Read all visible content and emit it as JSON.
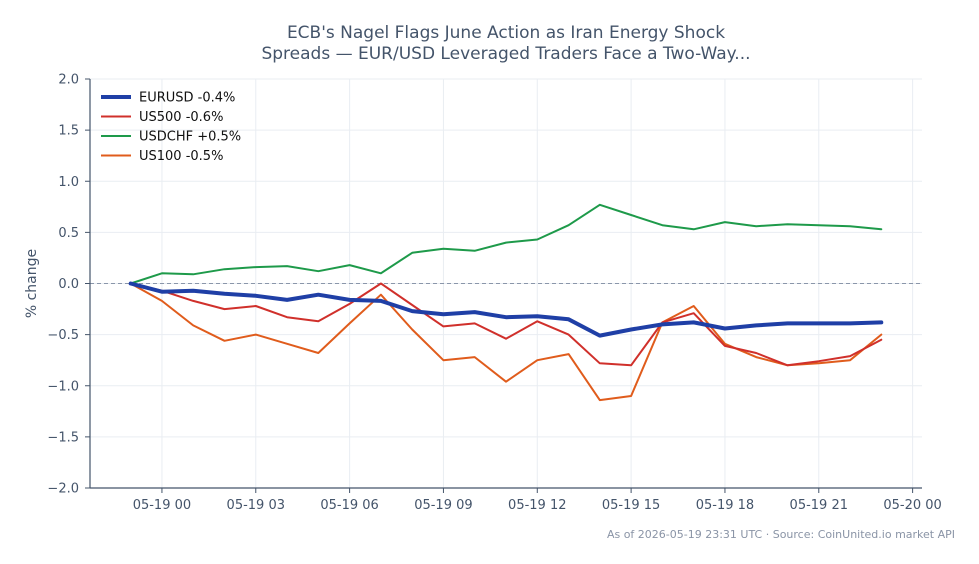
{
  "chart_data": {
    "type": "line",
    "title_lines": [
      "ECB's Nagel Flags June Action as Iran Energy Shock",
      "Spreads — EUR/USD Leveraged Traders Face a Two-Way..."
    ],
    "xlabel": "",
    "ylabel": "% change",
    "ylim": [
      -2.0,
      2.0
    ],
    "y_ticks": [
      2.0,
      1.5,
      1.0,
      0.5,
      0.0,
      -0.5,
      -1.0,
      -1.5,
      -2.0
    ],
    "y_tick_labels": [
      "2.0",
      "1.5",
      "1.0",
      "0.5",
      "0.0",
      "−0.5",
      "−1.0",
      "−1.5",
      "−2.0"
    ],
    "x_axis": "hours since 05-19 00:00",
    "xlim": [
      -2.3,
      24.3
    ],
    "x_ticks": [
      0,
      3,
      6,
      9,
      12,
      15,
      18,
      21,
      24
    ],
    "x_tick_labels": [
      "05-19 00",
      "05-19 03",
      "05-19 06",
      "05-19 09",
      "05-19 12",
      "05-19 15",
      "05-19 18",
      "05-19 21",
      "05-20 00"
    ],
    "x": [
      -1,
      0,
      1,
      2,
      3,
      4,
      5,
      6,
      7,
      8,
      9,
      10,
      11,
      12,
      13,
      14,
      15,
      16,
      17,
      18,
      19,
      20,
      21,
      22,
      23
    ],
    "grid": true,
    "zero_line": true,
    "legend_position": "top-left",
    "series": [
      {
        "name": "EURUSD -0.4%",
        "color": "#1f3fa6",
        "width": 4,
        "values": [
          0.0,
          -0.08,
          -0.07,
          -0.1,
          -0.12,
          -0.16,
          -0.11,
          -0.16,
          -0.17,
          -0.27,
          -0.3,
          -0.28,
          -0.33,
          -0.32,
          -0.35,
          -0.51,
          -0.45,
          -0.4,
          -0.38,
          -0.44,
          -0.41,
          -0.39,
          -0.39,
          -0.39,
          -0.38
        ]
      },
      {
        "name": "US500 -0.6%",
        "color": "#d0302b",
        "width": 2,
        "values": [
          0.0,
          -0.07,
          -0.17,
          -0.25,
          -0.22,
          -0.33,
          -0.37,
          -0.2,
          0.0,
          -0.21,
          -0.42,
          -0.39,
          -0.54,
          -0.37,
          -0.5,
          -0.78,
          -0.8,
          -0.38,
          -0.29,
          -0.61,
          -0.68,
          -0.8,
          -0.76,
          -0.71,
          -0.55
        ]
      },
      {
        "name": "USDCHF +0.5%",
        "color": "#1e9a4a",
        "width": 2,
        "values": [
          0.0,
          0.1,
          0.09,
          0.14,
          0.16,
          0.17,
          0.12,
          0.18,
          0.1,
          0.3,
          0.34,
          0.32,
          0.4,
          0.43,
          0.57,
          0.77,
          0.67,
          0.57,
          0.53,
          0.6,
          0.56,
          0.58,
          0.57,
          0.56,
          0.53
        ]
      },
      {
        "name": "US100 -0.5%",
        "color": "#e05c1c",
        "width": 2,
        "values": [
          0.0,
          -0.17,
          -0.41,
          -0.56,
          -0.5,
          -0.59,
          -0.68,
          -0.39,
          -0.11,
          -0.45,
          -0.75,
          -0.72,
          -0.96,
          -0.75,
          -0.69,
          -1.14,
          -1.1,
          -0.38,
          -0.22,
          -0.59,
          -0.72,
          -0.8,
          -0.78,
          -0.75,
          -0.5
        ]
      }
    ]
  },
  "footer": "As of 2026-05-19 23:31 UTC · Source: CoinUnited.io market API"
}
